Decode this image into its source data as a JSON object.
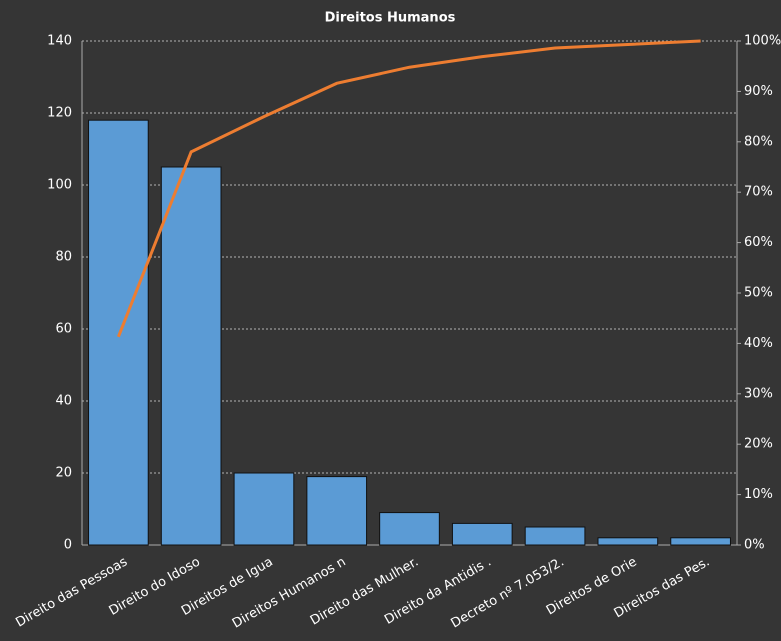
{
  "chart_data": {
    "type": "pareto",
    "title": "Direitos  Humanos",
    "categories": [
      "Direito das Pessoas",
      "Direito do Idoso",
      "Direitos de Igua",
      "Direitos Humanos  n",
      "Direito das Mulher.",
      "Direito da Antidis .",
      "Decreto nº 7.053/2.",
      "Direitos de Orie",
      "Direitos das Pes."
    ],
    "series": [
      {
        "type": "bar",
        "color": "#5b9bd5",
        "values": [
          118,
          105,
          20,
          19,
          9,
          6,
          5,
          2,
          2
        ]
      },
      {
        "type": "line",
        "axis": "y2",
        "color": "#ed7d31",
        "values": [
          41.3,
          78.0,
          85.0,
          91.6,
          94.8,
          96.9,
          98.6,
          99.3,
          100
        ]
      }
    ],
    "ylim": [
      0,
      140
    ],
    "yticks": [
      0,
      20,
      40,
      60,
      80,
      100,
      120,
      140
    ],
    "y2lim": [
      0,
      100
    ],
    "y2ticks": [
      {
        "value": 0,
        "label": "0%"
      },
      {
        "value": 10,
        "label": "10%"
      },
      {
        "value": 20,
        "label": "20%"
      },
      {
        "value": 30,
        "label": "30%"
      },
      {
        "value": 40,
        "label": "40%"
      },
      {
        "value": 50,
        "label": "50%"
      },
      {
        "value": 60,
        "label": "60%"
      },
      {
        "value": 70,
        "label": "70%"
      },
      {
        "value": 80,
        "label": "80%"
      },
      {
        "value": 90,
        "label": "90%"
      },
      {
        "value": 100,
        "label": "100%"
      }
    ],
    "grid": true
  }
}
